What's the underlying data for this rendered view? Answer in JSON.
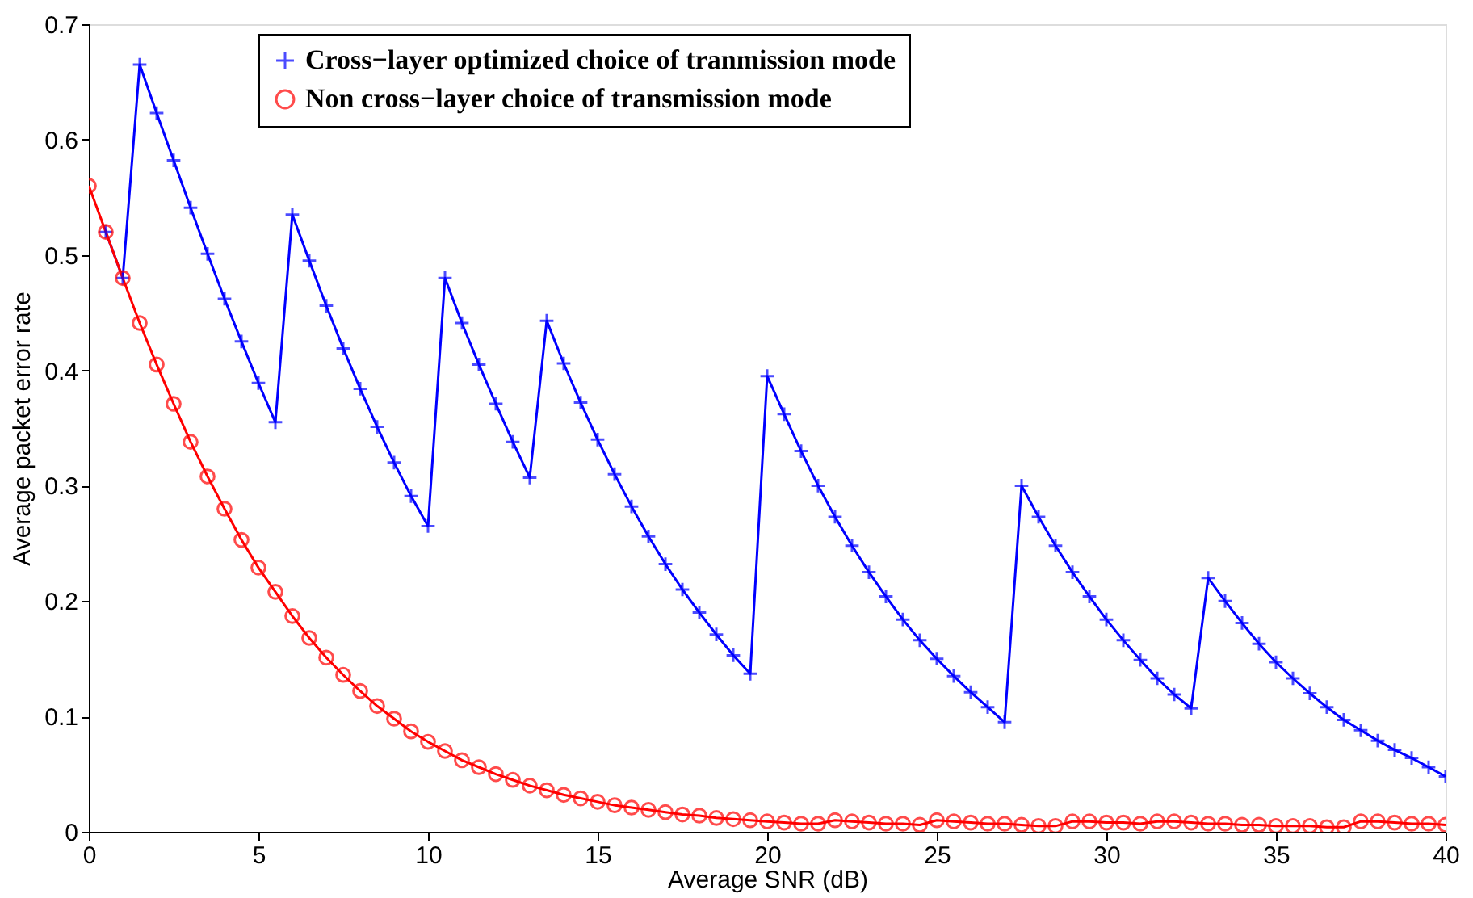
{
  "chart_data": {
    "type": "line",
    "xlabel": "Average SNR (dB)",
    "ylabel": "Average packet error rate",
    "xlim": [
      0,
      40
    ],
    "xticks": [
      0,
      5,
      10,
      15,
      20,
      25,
      30,
      35,
      40
    ],
    "ylim": [
      0,
      0.7
    ],
    "yticks": [
      0,
      0.1,
      0.2,
      0.3,
      0.4,
      0.5,
      0.6,
      0.7
    ],
    "grid": false,
    "legend": "top",
    "line_style": "solid",
    "series": [
      {
        "name": "Cross−layer optimized choice of tranmission mode",
        "color": "#0000ff",
        "marker": "cross",
        "x": [
          0.5,
          1,
          1.5,
          2,
          2.5,
          3,
          3.5,
          4,
          4.5,
          5,
          5.5,
          6,
          6.5,
          7,
          7.5,
          8,
          8.5,
          9,
          9.5,
          10,
          10.5,
          11,
          11.5,
          12,
          12.5,
          13,
          13.5,
          14,
          14.5,
          15,
          15.5,
          16,
          16.5,
          17,
          17.5,
          18,
          18.5,
          19,
          19.5,
          20,
          20.5,
          21,
          21.5,
          22,
          22.5,
          23,
          23.5,
          24,
          24.5,
          25,
          25.5,
          26,
          26.5,
          27,
          27.5,
          28,
          28.5,
          29,
          29.5,
          30,
          30.5,
          31,
          31.5,
          32,
          32.5,
          33,
          33.5,
          34,
          34.5,
          35,
          35.5,
          36,
          36.5,
          37,
          37.5,
          38,
          38.5,
          39,
          39.5,
          40
        ],
        "values": [
          0.52,
          0.48,
          0.665,
          0.623,
          0.582,
          0.541,
          0.501,
          0.462,
          0.425,
          0.389,
          0.355,
          0.535,
          0.495,
          0.456,
          0.419,
          0.384,
          0.351,
          0.32,
          0.291,
          0.265,
          0.48,
          0.441,
          0.405,
          0.371,
          0.338,
          0.307,
          0.443,
          0.406,
          0.372,
          0.34,
          0.31,
          0.282,
          0.256,
          0.232,
          0.21,
          0.19,
          0.171,
          0.153,
          0.137,
          0.395,
          0.362,
          0.33,
          0.3,
          0.273,
          0.248,
          0.225,
          0.204,
          0.184,
          0.166,
          0.15,
          0.135,
          0.121,
          0.108,
          0.095,
          0.3,
          0.273,
          0.248,
          0.225,
          0.204,
          0.184,
          0.166,
          0.149,
          0.133,
          0.119,
          0.107,
          0.22,
          0.2,
          0.181,
          0.163,
          0.147,
          0.133,
          0.12,
          0.108,
          0.097,
          0.088,
          0.079,
          0.071,
          0.064,
          0.056,
          0.048
        ]
      },
      {
        "name": "Non cross−layer choice of transmission mode",
        "color": "#ff0000",
        "marker": "circle",
        "x": [
          0,
          0.5,
          1,
          1.5,
          2,
          2.5,
          3,
          3.5,
          4,
          4.5,
          5,
          5.5,
          6,
          6.5,
          7,
          7.5,
          8,
          8.5,
          9,
          9.5,
          10,
          10.5,
          11,
          11.5,
          12,
          12.5,
          13,
          13.5,
          14,
          14.5,
          15,
          15.5,
          16,
          16.5,
          17,
          17.5,
          18,
          18.5,
          19,
          19.5,
          20,
          20.5,
          21,
          21.5,
          22,
          22.5,
          23,
          23.5,
          24,
          24.5,
          25,
          25.5,
          26,
          26.5,
          27,
          27.5,
          28,
          28.5,
          29,
          29.5,
          30,
          30.5,
          31,
          31.5,
          32,
          32.5,
          33,
          33.5,
          34,
          34.5,
          35,
          35.5,
          36,
          36.5,
          37,
          37.5,
          38,
          38.5,
          39,
          39.5,
          40
        ],
        "values": [
          0.56,
          0.52,
          0.48,
          0.441,
          0.405,
          0.371,
          0.338,
          0.308,
          0.28,
          0.253,
          0.229,
          0.208,
          0.187,
          0.168,
          0.151,
          0.136,
          0.122,
          0.109,
          0.098,
          0.087,
          0.078,
          0.07,
          0.062,
          0.056,
          0.05,
          0.045,
          0.04,
          0.036,
          0.032,
          0.029,
          0.026,
          0.023,
          0.021,
          0.019,
          0.017,
          0.015,
          0.014,
          0.012,
          0.011,
          0.01,
          0.009,
          0.008,
          0.007,
          0.007,
          0.01,
          0.009,
          0.008,
          0.007,
          0.007,
          0.006,
          0.01,
          0.009,
          0.008,
          0.007,
          0.007,
          0.006,
          0.005,
          0.005,
          0.009,
          0.009,
          0.008,
          0.008,
          0.007,
          0.009,
          0.009,
          0.008,
          0.007,
          0.007,
          0.006,
          0.006,
          0.005,
          0.005,
          0.005,
          0.004,
          0.004,
          0.009,
          0.009,
          0.008,
          0.007,
          0.007,
          0.006
        ]
      }
    ]
  }
}
